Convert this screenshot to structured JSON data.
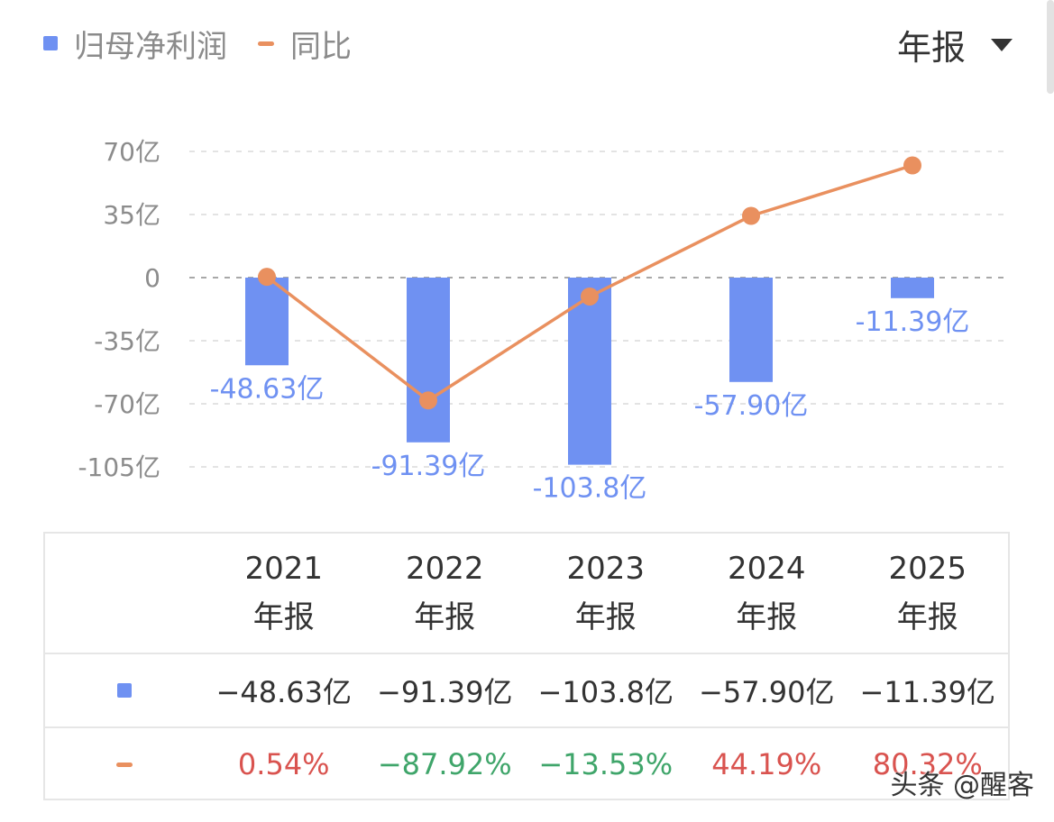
{
  "legend": {
    "bar_label": "归母净利润",
    "line_label": "同比"
  },
  "period_selector": {
    "label": "年报"
  },
  "chart_data": {
    "type": "bar+line",
    "categories": [
      "2021",
      "2022",
      "2023",
      "2024",
      "2025"
    ],
    "series": [
      {
        "name": "归母净利润",
        "type": "bar",
        "unit": "亿",
        "values": [
          -48.63,
          -91.39,
          -103.8,
          -57.9,
          -11.39
        ],
        "labels": [
          "-48.63亿",
          "-91.39亿",
          "-103.8亿",
          "-57.90亿",
          "-11.39亿"
        ]
      },
      {
        "name": "同比",
        "type": "line",
        "unit": "%",
        "values": [
          0.54,
          -87.92,
          -13.53,
          44.19,
          80.32
        ]
      }
    ],
    "y_ticks": [
      70,
      35,
      0,
      -35,
      -70,
      -105
    ],
    "y_tick_labels": [
      "70亿",
      "35亿",
      "0",
      "-35亿",
      "-70亿",
      "-105亿"
    ],
    "ylim": [
      -105,
      70
    ],
    "grid": true,
    "legend_position": "top-left"
  },
  "table": {
    "columns": [
      {
        "year": "2021",
        "period": "年报"
      },
      {
        "year": "2022",
        "period": "年报"
      },
      {
        "year": "2023",
        "period": "年报"
      },
      {
        "year": "2024",
        "period": "年报"
      },
      {
        "year": "2025",
        "period": "年报"
      }
    ],
    "values": [
      "−48.63亿",
      "−91.39亿",
      "−103.8亿",
      "−57.90亿",
      "−11.39亿"
    ],
    "yoy": [
      "0.54%",
      "−87.92%",
      "−13.53%",
      "44.19%",
      "80.32%"
    ],
    "yoy_colors": [
      "#d9534f",
      "#3fa56a",
      "#3fa56a",
      "#d9534f",
      "#d9534f"
    ]
  },
  "colors": {
    "bar": "#6f91f2",
    "line": "#e9905f",
    "positive": "#d9534f",
    "negative": "#3fa56a"
  },
  "watermark": "头条 @醒客"
}
